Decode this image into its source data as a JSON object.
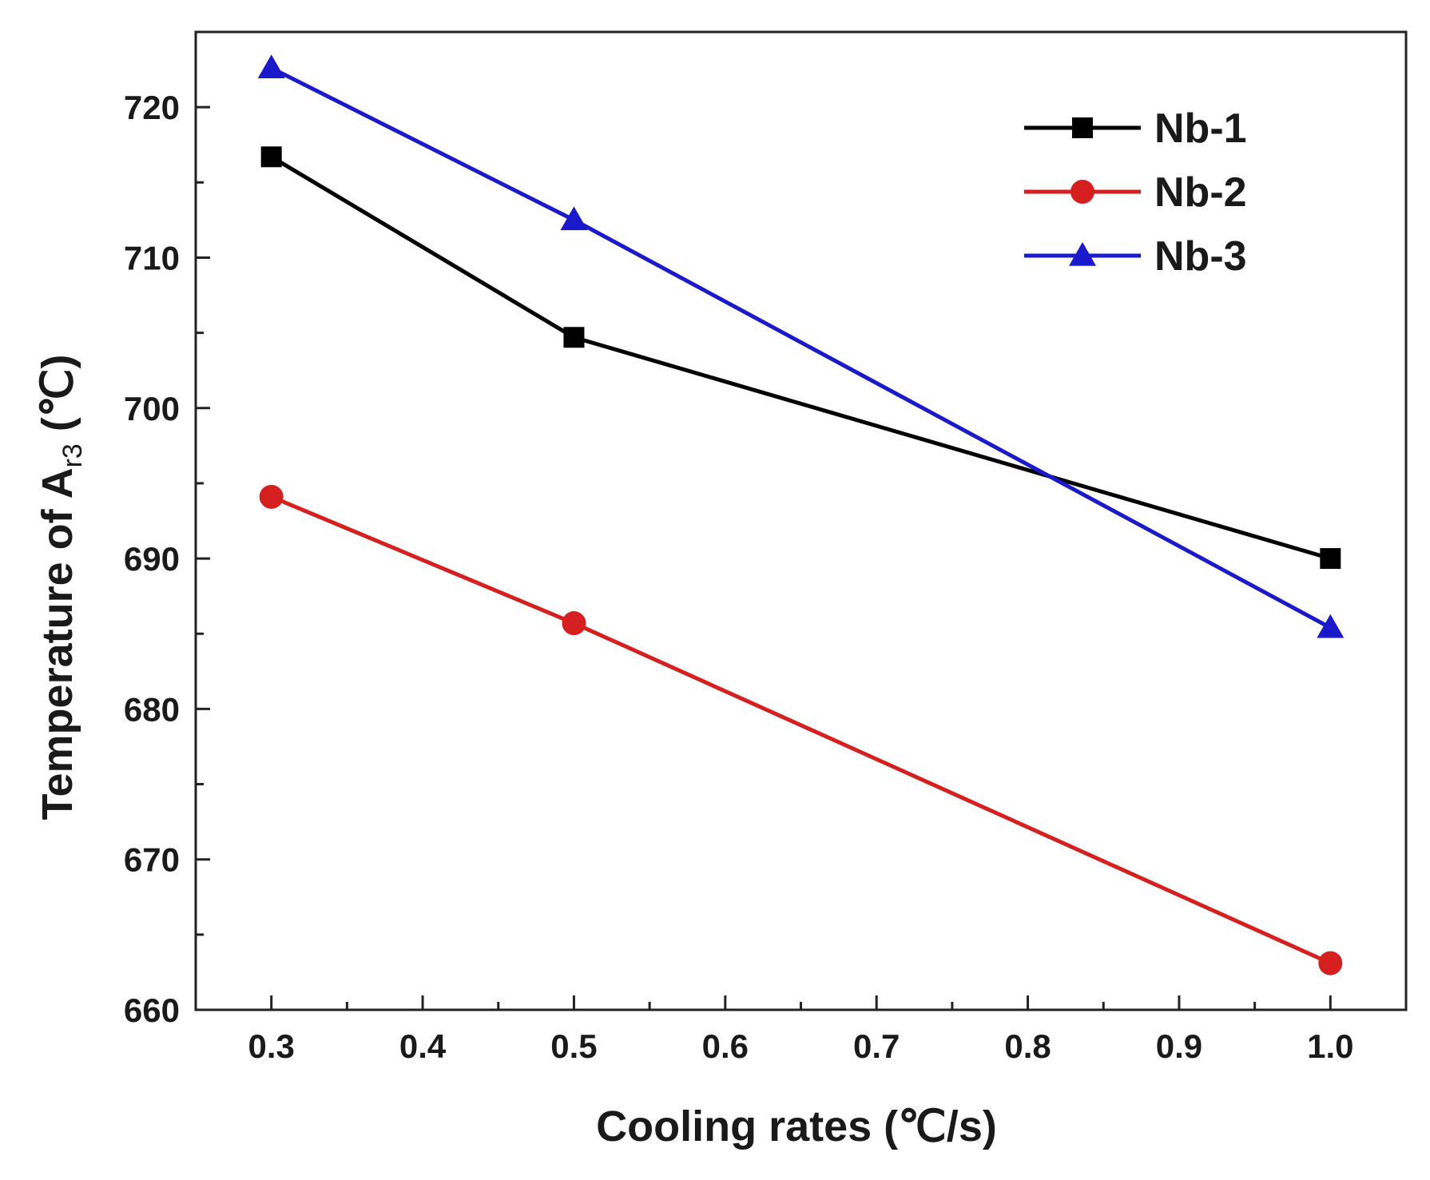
{
  "chart_data": {
    "type": "line",
    "xlabel": "Cooling rates (℃/s)",
    "ylabel": {
      "prefix": "Temperature of A",
      "subscript": "r3",
      "suffix": " (℃)"
    },
    "xlim": [
      0.25,
      1.05
    ],
    "ylim": [
      660,
      725
    ],
    "xticks": [
      0.3,
      0.4,
      0.5,
      0.6,
      0.7,
      0.8,
      0.9,
      1.0
    ],
    "xtick_labels": [
      "0.3",
      "0.4",
      "0.5",
      "0.6",
      "0.7",
      "0.8",
      "0.9",
      "1.0"
    ],
    "yticks": [
      660,
      670,
      680,
      690,
      700,
      710,
      720
    ],
    "ytick_labels": [
      "660",
      "670",
      "680",
      "690",
      "700",
      "710",
      "720"
    ],
    "grid": false,
    "legend_position": "top-right",
    "series": [
      {
        "name": "Nb-1",
        "color": "#000000",
        "marker": "square",
        "x": [
          0.3,
          0.5,
          1.0
        ],
        "y": [
          716.7,
          704.7,
          690.0
        ]
      },
      {
        "name": "Nb-2",
        "color": "#d62020",
        "marker": "circle",
        "x": [
          0.3,
          0.5,
          1.0
        ],
        "y": [
          694.1,
          685.7,
          663.1
        ]
      },
      {
        "name": "Nb-3",
        "color": "#1a1acc",
        "marker": "triangle",
        "x": [
          0.3,
          0.5,
          1.0
        ],
        "y": [
          722.6,
          712.5,
          685.4
        ]
      }
    ]
  }
}
